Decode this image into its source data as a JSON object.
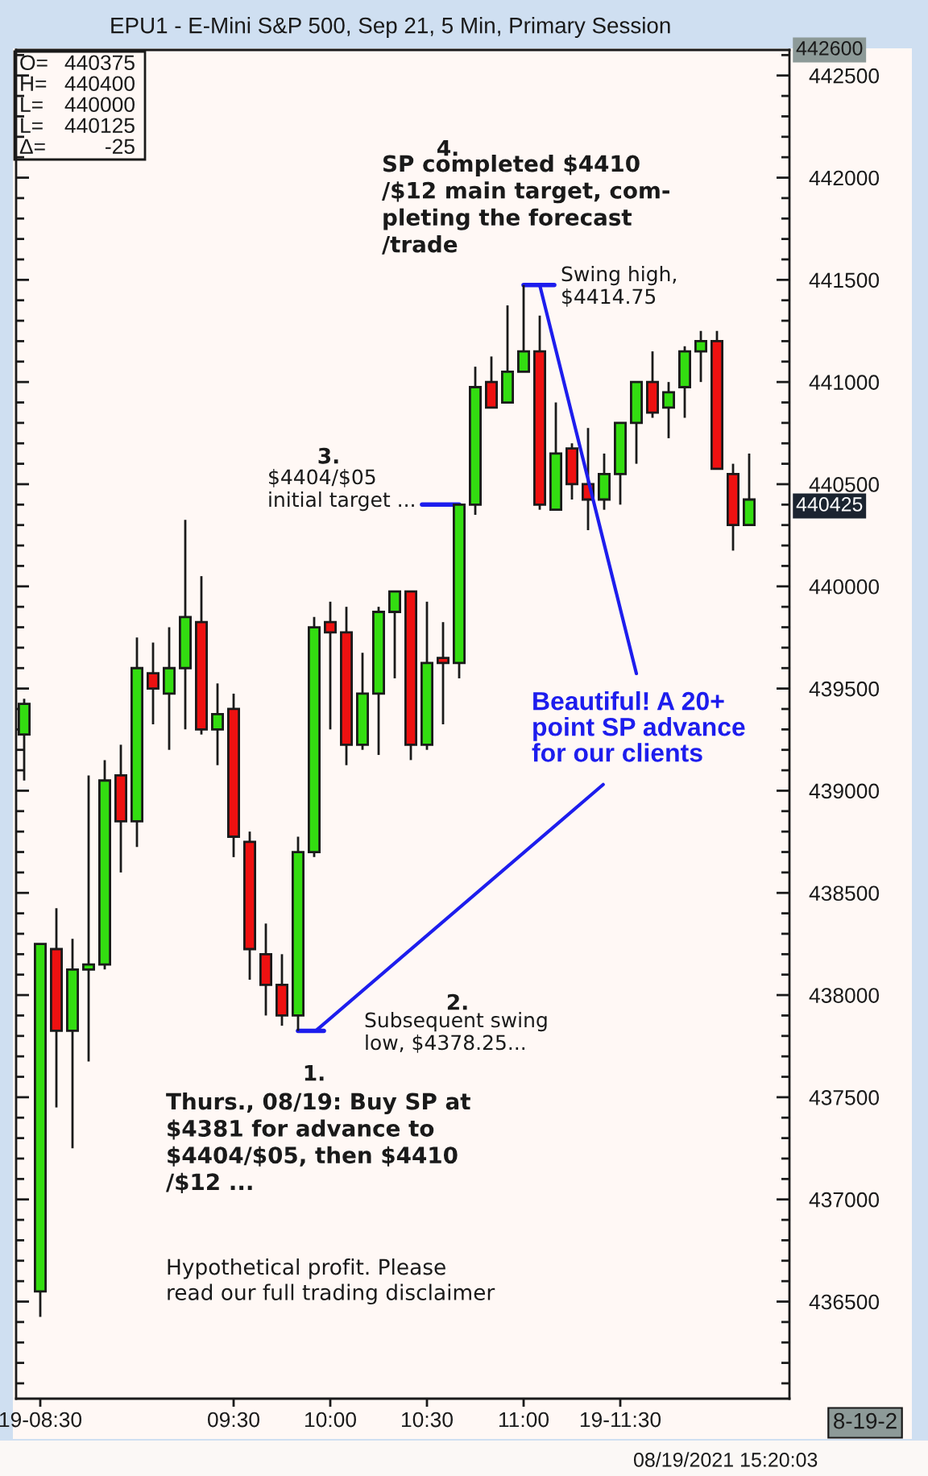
{
  "chart_data": {
    "type": "candlestick",
    "title": "EPU1 - E-Mini S&P 500, Sep 21, 5 Min, Primary Session",
    "categories": [
      null,
      "19-08:30",
      null,
      null,
      null,
      null,
      null,
      null,
      null,
      null,
      null,
      null,
      null,
      "09:30",
      null,
      null,
      null,
      null,
      null,
      "10:00",
      null,
      null,
      null,
      null,
      null,
      "10:30",
      null,
      null,
      null,
      null,
      null,
      "11:00",
      null,
      null,
      null,
      null,
      null,
      "19-11:30",
      null,
      null,
      null,
      null,
      null,
      null,
      null,
      null,
      null,
      null
    ],
    "ohlc": [
      [
        439275,
        439450,
        439050,
        439425
      ],
      [
        436550,
        438250,
        436425,
        438250
      ],
      [
        438225,
        438425,
        437450,
        437825
      ],
      [
        437825,
        438275,
        437250,
        438125
      ],
      [
        438125,
        439075,
        437675,
        438150
      ],
      [
        438150,
        439150,
        438125,
        439050
      ],
      [
        439075,
        439225,
        438600,
        438850
      ],
      [
        438850,
        439750,
        438725,
        439600
      ],
      [
        439575,
        439725,
        439325,
        439500
      ],
      [
        439475,
        439800,
        439200,
        439600
      ],
      [
        439600,
        440325,
        439300,
        439850
      ],
      [
        439825,
        440050,
        439275,
        439300
      ],
      [
        439300,
        439525,
        439125,
        439375
      ],
      [
        439400,
        439475,
        438675,
        438775
      ],
      [
        438750,
        438800,
        438075,
        438225
      ],
      [
        438200,
        438350,
        437900,
        438050
      ],
      [
        438050,
        438200,
        437850,
        437900
      ],
      [
        437900,
        438775,
        437825,
        438700
      ],
      [
        438700,
        439850,
        438675,
        439800
      ],
      [
        439825,
        439925,
        439300,
        439775
      ],
      [
        439775,
        439900,
        439125,
        439225
      ],
      [
        439225,
        439675,
        439200,
        439475
      ],
      [
        439475,
        439900,
        439175,
        439875
      ],
      [
        439875,
        439975,
        439550,
        439975
      ],
      [
        439975,
        439975,
        439150,
        439225
      ],
      [
        439225,
        439925,
        439200,
        439625
      ],
      [
        439650,
        439825,
        439325,
        439625
      ],
      [
        439625,
        440400,
        439550,
        440400
      ],
      [
        440400,
        441075,
        440350,
        440975
      ],
      [
        441000,
        441125,
        440875,
        440875
      ],
      [
        440900,
        441375,
        440900,
        441050
      ],
      [
        441050,
        441475,
        441050,
        441150
      ],
      [
        441150,
        441325,
        440375,
        440400
      ],
      [
        440375,
        440900,
        440375,
        440650
      ],
      [
        440675,
        440700,
        440425,
        440500
      ],
      [
        440500,
        440775,
        440275,
        440425
      ],
      [
        440425,
        440650,
        440375,
        440550
      ],
      [
        440550,
        440800,
        440400,
        440800
      ],
      [
        440800,
        441000,
        440600,
        441000
      ],
      [
        441000,
        441150,
        440825,
        440850
      ],
      [
        440875,
        441000,
        440725,
        440950
      ],
      [
        440975,
        441175,
        440825,
        441150
      ],
      [
        441150,
        441250,
        441000,
        441200
      ],
      [
        441200,
        441250,
        440575,
        440575
      ],
      [
        440550,
        440600,
        440175,
        440300
      ],
      [
        440300,
        440650,
        440300,
        440425
      ],
      null,
      null
    ],
    "colors": [
      "#33dd11",
      "#33dd11",
      "#ee1111",
      "#33dd11",
      "#33dd11",
      "#33dd11",
      "#ee1111",
      "#33dd11",
      "#ee1111",
      "#33dd11",
      "#33dd11",
      "#ee1111",
      "#33dd11",
      "#ee1111",
      "#ee1111",
      "#ee1111",
      "#ee1111",
      "#33dd11",
      "#33dd11",
      "#ee1111",
      "#ee1111",
      "#33dd11",
      "#33dd11",
      "#33dd11",
      "#ee1111",
      "#33dd11",
      "#ee1111",
      "#33dd11",
      "#33dd11",
      "#ee1111",
      "#33dd11",
      "#33dd11",
      "#ee1111",
      "#33dd11",
      "#ee1111",
      "#ee1111",
      "#33dd11",
      "#33dd11",
      "#33dd11",
      "#ee1111",
      "#33dd11",
      "#33dd11",
      "#33dd11",
      "#ee1111",
      "#ee1111",
      "#33dd11",
      null,
      null
    ],
    "ylim": [
      436025,
      442625
    ],
    "yticks": [
      {
        "value": 436100,
        "label": null
      },
      {
        "value": 436200,
        "label": null
      },
      {
        "value": 436300,
        "label": null
      },
      {
        "value": 436400,
        "label": null
      },
      436500,
      {
        "value": 436600,
        "label": null
      },
      {
        "value": 436700,
        "label": null
      },
      {
        "value": 436800,
        "label": null
      },
      {
        "value": 436900,
        "label": null
      },
      437000,
      {
        "value": 437100,
        "label": null
      },
      {
        "value": 437200,
        "label": null
      },
      {
        "value": 437300,
        "label": null
      },
      {
        "value": 437400,
        "label": null
      },
      437500,
      {
        "value": 437600,
        "label": null
      },
      {
        "value": 437700,
        "label": null
      },
      {
        "value": 437800,
        "label": null
      },
      {
        "value": 437900,
        "label": null
      },
      438000,
      {
        "value": 438100,
        "label": null
      },
      {
        "value": 438200,
        "label": null
      },
      {
        "value": 438300,
        "label": null
      },
      {
        "value": 438400,
        "label": null
      },
      438500,
      {
        "value": 438600,
        "label": null
      },
      {
        "value": 438700,
        "label": null
      },
      {
        "value": 438800,
        "label": null
      },
      {
        "value": 438900,
        "label": null
      },
      439000,
      {
        "value": 439100,
        "label": null
      },
      {
        "value": 439200,
        "label": null
      },
      {
        "value": 439300,
        "label": null
      },
      {
        "value": 439400,
        "label": null
      },
      439500,
      {
        "value": 439600,
        "label": null
      },
      {
        "value": 439700,
        "label": null
      },
      {
        "value": 439800,
        "label": null
      },
      {
        "value": 439900,
        "label": null
      },
      440000,
      {
        "value": 440100,
        "label": null
      },
      {
        "value": 440200,
        "label": null
      },
      {
        "value": 440300,
        "label": null
      },
      {
        "value": 440400,
        "label": null
      },
      440500,
      {
        "value": 440600,
        "label": null
      },
      {
        "value": 440700,
        "label": null
      },
      {
        "value": 440800,
        "label": null
      },
      {
        "value": 440900,
        "label": null
      },
      441000,
      {
        "value": 441100,
        "label": null
      },
      {
        "value": 441200,
        "label": null
      },
      {
        "value": 441300,
        "label": null
      },
      {
        "value": 441400,
        "label": null
      },
      441500,
      {
        "value": 441600,
        "label": null
      },
      {
        "value": 441700,
        "label": null
      },
      {
        "value": 441800,
        "label": null
      },
      {
        "value": 441900,
        "label": null
      },
      442000,
      {
        "value": 442100,
        "label": null
      },
      {
        "value": 442200,
        "label": null
      },
      {
        "value": 442300,
        "label": null
      },
      {
        "value": 442400,
        "label": null
      },
      442500,
      {
        "value": 442600,
        "label": null
      }
    ],
    "annotations": [
      "O= 440375",
      "H= 440400",
      "L= 440000",
      "L= 440125",
      "Δ= -25",
      "4.",
      "SP completed $4410\n/$12 main target, com-\npleting the forecast\n/trade",
      "Swing high,\n$4414.75",
      "3.",
      "$4404/$05\ninitial target ...",
      "Beautiful! A 20+\npoint SP advance\nfor our clients",
      "2.",
      "Subsequent swing\nlow, $4378.25...",
      "1.",
      "Thurs., 08/19: Buy SP at\n$4381 for advance to\n$4404/$05, then $4410\n/$12 ...",
      "Hypothetical profit. Please\nread our full trading disclaimer",
      "440425",
      "442600",
      "8-19-2",
      "08/19/2021 15:20:03"
    ]
  }
}
